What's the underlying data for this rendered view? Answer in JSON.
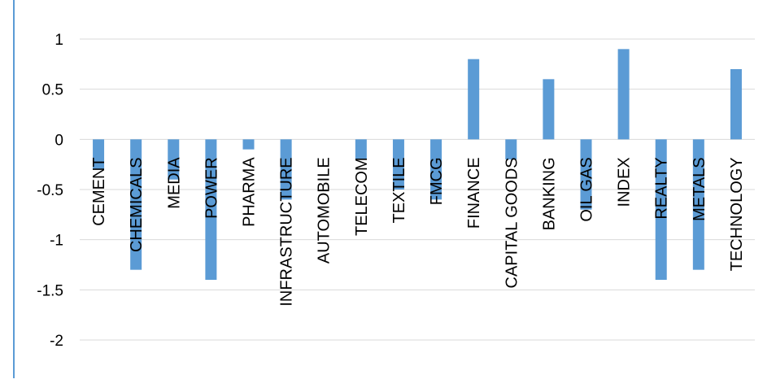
{
  "chart_data": {
    "type": "bar",
    "categories": [
      "CEMENT",
      "CHEMICALS",
      "MEDIA",
      "POWER",
      "PHARMA",
      "INFRASTRUCTURE",
      "AUTOMOBILE",
      "TELECOM",
      "TEXTILE",
      "FMCG",
      "FINANCE",
      "CAPITAL GOODS",
      "BANKING",
      "OIL GAS",
      "INDEX",
      "REALTY",
      "METALS",
      "TECHNOLOGY"
    ],
    "series": [
      {
        "values": [
          -0.3,
          -1.3,
          -0.4,
          -1.4,
          -0.1,
          -0.6,
          0,
          -0.2,
          -0.5,
          -0.6,
          0.8,
          -0.2,
          0.6,
          -0.7,
          0.9,
          -1.4,
          -1.3,
          0.7
        ]
      }
    ],
    "yticks": [
      "1",
      "0.5",
      "0",
      "-0.5",
      "-1",
      "-1.5",
      "-2"
    ],
    "ylim": [
      -2,
      1
    ],
    "grid": true,
    "bar_color": "#5b9bd5",
    "grid_color": "#d9d9d9",
    "frame_color": "#5b9bd5"
  }
}
